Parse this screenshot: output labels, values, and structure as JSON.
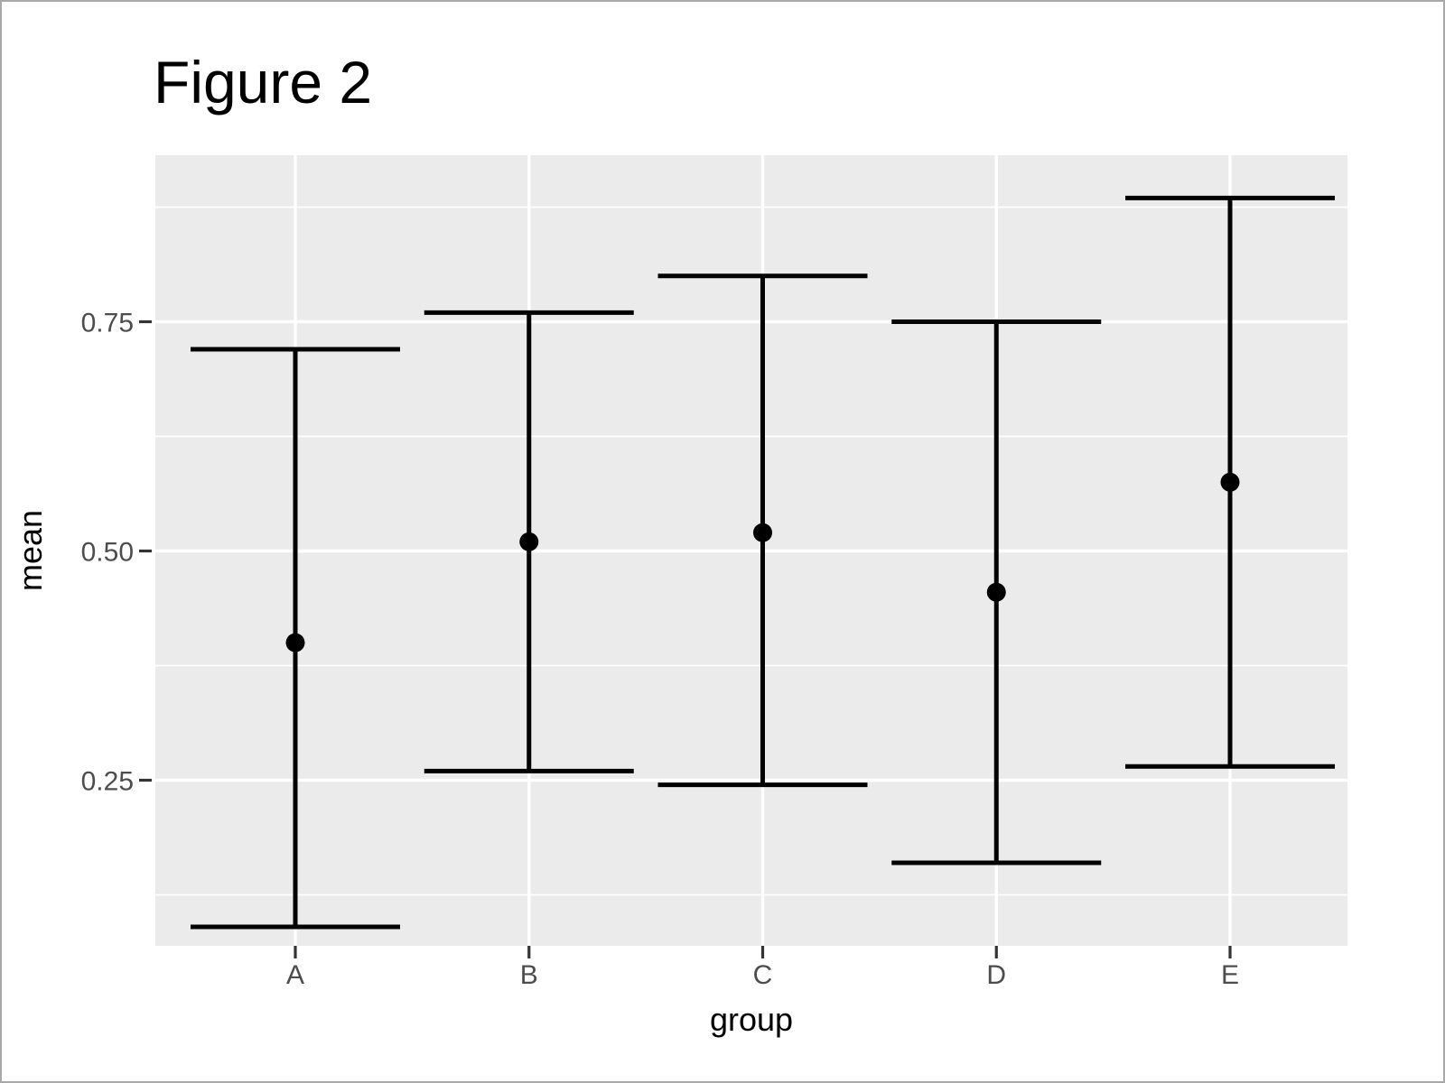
{
  "figure": {
    "title": "Figure 2",
    "x_axis": {
      "label": "group",
      "tick_labels": [
        "A",
        "B",
        "C",
        "D",
        "E"
      ]
    },
    "y_axis": {
      "label": "mean",
      "tick_labels": [
        "0.25",
        "0.50",
        "0.75"
      ]
    },
    "colors": {
      "panel_bg": "#EBEBEB",
      "grid": "#FFFFFF",
      "data": "#000000",
      "tick_label": "#4D4D4D",
      "tick_mark": "#333333",
      "frame": "#A9A9A9"
    }
  },
  "chart_data": {
    "type": "scatter",
    "subtype": "pointrange-errorbar",
    "title": "Figure 2",
    "xlabel": "group",
    "ylabel": "mean",
    "categories": [
      "A",
      "B",
      "C",
      "D",
      "E"
    ],
    "series": [
      {
        "name": "mean",
        "values": [
          0.4,
          0.51,
          0.52,
          0.455,
          0.575
        ]
      },
      {
        "name": "upper",
        "values": [
          0.72,
          0.76,
          0.8,
          0.75,
          0.885
        ]
      },
      {
        "name": "lower",
        "values": [
          0.09,
          0.26,
          0.245,
          0.16,
          0.265
        ]
      }
    ],
    "y_breaks": [
      0.25,
      0.5,
      0.75
    ],
    "y_minor_breaks": [
      0.125,
      0.375,
      0.625,
      0.875
    ],
    "ylim": [
      0.069,
      0.932
    ],
    "grid": true,
    "legend": "none",
    "panel_background": "#EBEBEB",
    "gridline_color": "#FFFFFF",
    "marker_color": "#000000"
  }
}
